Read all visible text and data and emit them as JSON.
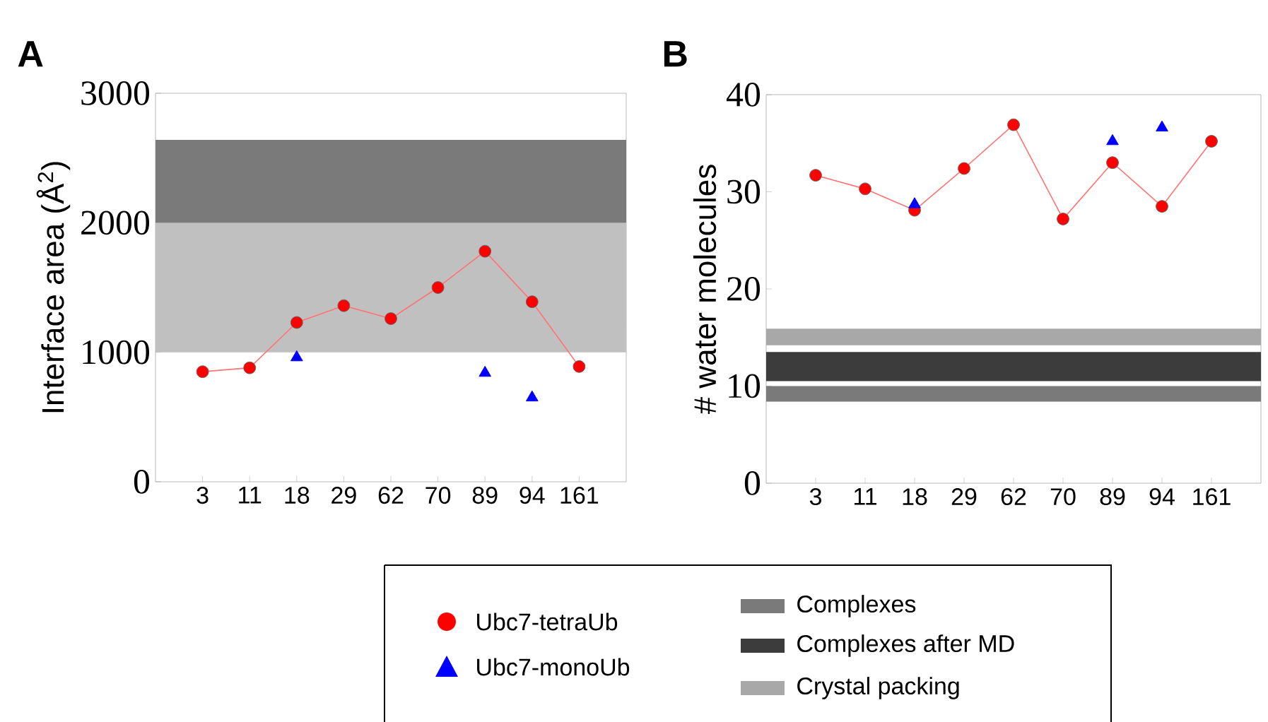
{
  "chart_data": [
    {
      "type": "line",
      "title": "A",
      "ylabel": "Interface area (Å$^{2}$)",
      "categories": [
        "3",
        "11",
        "18",
        "29",
        "62",
        "70",
        "89",
        "94",
        "161"
      ],
      "series": [
        {
          "name": "Ubc7-tetraUb",
          "color": "#ff0000",
          "marker": "circle",
          "values": [
            850,
            880,
            1230,
            1360,
            1260,
            1500,
            1780,
            1390,
            890
          ]
        },
        {
          "name": "Ubc7-monoUb",
          "color": "#0000ff",
          "type": "scatter",
          "marker": "triangle",
          "values": [
            null,
            null,
            960,
            null,
            null,
            null,
            840,
            650,
            null
          ]
        }
      ],
      "ylim": [
        0,
        3000
      ],
      "yticks": [
        0,
        1000,
        2000,
        3000
      ],
      "legend": "bottom",
      "bands": [
        {
          "axis": "y",
          "from": 1200,
          "to": 2640,
          "color": "#7a7a7a"
        },
        {
          "axis": "y",
          "from": 1000,
          "to": 2000,
          "color": "#c0c0c0"
        }
      ]
    },
    {
      "type": "line",
      "title": "B",
      "ylabel": "# water molecules",
      "categories": [
        "3",
        "11",
        "18",
        "29",
        "62",
        "70",
        "89",
        "94",
        "161"
      ],
      "series": [
        {
          "color": "#ff0000",
          "marker": "circle",
          "values": [
            31.7,
            30.3,
            28.1,
            32.4,
            36.9,
            27.2,
            33.0,
            28.5,
            35.2
          ]
        },
        {
          "color": "#0000ff",
          "type": "scatter",
          "marker": "triangle",
          "values": [
            null,
            null,
            28.7,
            null,
            null,
            null,
            35.2,
            36.6,
            null
          ]
        }
      ],
      "ylim": [
        0,
        40
      ],
      "yticks": [
        0,
        10,
        20,
        30,
        40
      ],
      "legend": "bottom",
      "bands": [
        {
          "axis": "y",
          "from": 8.4,
          "to": 10.0,
          "label": "Complexes",
          "color": "#7a7a7a"
        },
        {
          "axis": "y",
          "from": 10.5,
          "to": 13.5,
          "label": "Complexes after MD",
          "color": "#3c3c3c"
        },
        {
          "axis": "y",
          "from": 14.2,
          "to": 15.9,
          "label": "Crystal packing",
          "color": "#a8a8a8"
        }
      ]
    }
  ]
}
